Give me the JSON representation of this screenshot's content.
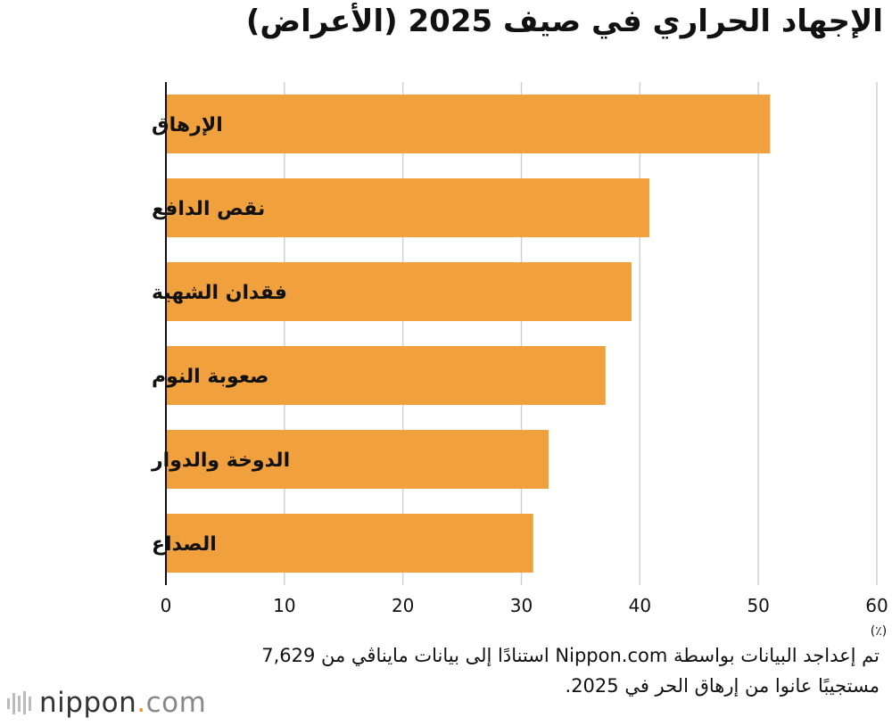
{
  "title": "الإجهاد الحراري في صيف 2025 (الأعراض)",
  "colors": {
    "bar": "#f0a03c",
    "grid": "#d0d0d0",
    "axis": "#111111",
    "logo_accent": "#e8912d"
  },
  "chart_data": {
    "type": "bar",
    "orientation": "horizontal",
    "categories": [
      "الإرهاق",
      "نقص الدافع",
      "فقدان الشهية",
      "صعوبة النوم",
      "الدوخة والدوار",
      "الصداع"
    ],
    "values": [
      51.0,
      40.8,
      39.3,
      37.1,
      32.3,
      31.0
    ],
    "xlim": [
      0,
      60
    ],
    "xticks": [
      "0",
      "10",
      "20",
      "30",
      "40",
      "50",
      "60"
    ],
    "unit": "(٪)",
    "grid": true
  },
  "source": "تم إعداجد البيانات بواسطة Nippon.com استنادًا إلى بيانات مايناڤي من 7,629 مستجيبًا عانوا من إرهاق الحر في 2025.",
  "logo": {
    "name": "nippon",
    "dot": ".",
    "tld": "com"
  }
}
